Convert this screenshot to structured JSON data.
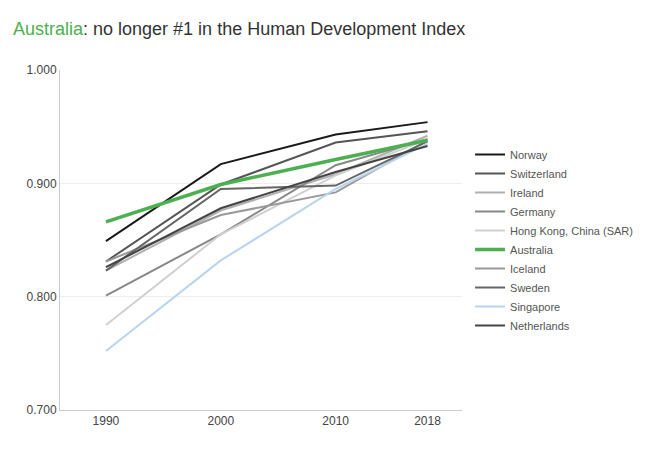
{
  "chart_data": {
    "type": "line",
    "title": "Australia: no longer #1 in the Human Development Index",
    "x": [
      1990,
      2000,
      2010,
      2018
    ],
    "series": [
      {
        "name": "Norway",
        "color": "#1a1a1a",
        "values": [
          0.849,
          0.917,
          0.943,
          0.954
        ]
      },
      {
        "name": "Switzerland",
        "color": "#555555",
        "values": [
          0.831,
          0.899,
          0.936,
          0.946
        ]
      },
      {
        "name": "Ireland",
        "color": "#b0b0b0",
        "values": [
          0.823,
          0.876,
          0.908,
          0.942
        ]
      },
      {
        "name": "Germany",
        "color": "#888888",
        "values": [
          0.801,
          0.855,
          0.916,
          0.939
        ]
      },
      {
        "name": "Hong Kong, China (SAR)",
        "color": "#d0d0d0",
        "values": [
          0.775,
          0.855,
          0.907,
          0.939
        ]
      },
      {
        "name": "Australia",
        "color": "#4caf50",
        "values": [
          0.866,
          0.899,
          0.921,
          0.938
        ]
      },
      {
        "name": "Iceland",
        "color": "#999999",
        "values": [
          0.831,
          0.872,
          0.892,
          0.938
        ]
      },
      {
        "name": "Sweden",
        "color": "#666666",
        "values": [
          0.823,
          0.895,
          0.898,
          0.937
        ]
      },
      {
        "name": "Singapore",
        "color": "#b8d4ee",
        "values": [
          0.752,
          0.832,
          0.895,
          0.935
        ]
      },
      {
        "name": "Netherlands",
        "color": "#444444",
        "values": [
          0.826,
          0.878,
          0.91,
          0.933
        ]
      }
    ],
    "xlim": [
      1986,
      2021
    ],
    "xticks": [
      1990,
      2000,
      2010,
      2018
    ],
    "ylim": [
      0.7,
      1.0
    ],
    "yticks": [
      {
        "value": 0.7,
        "label": "0.700"
      },
      {
        "value": 0.8,
        "label": "0.800"
      },
      {
        "value": 0.9,
        "label": "0.900"
      },
      {
        "value": 1.0,
        "label": "1.000"
      }
    ],
    "grid": "y",
    "legend": "right"
  }
}
